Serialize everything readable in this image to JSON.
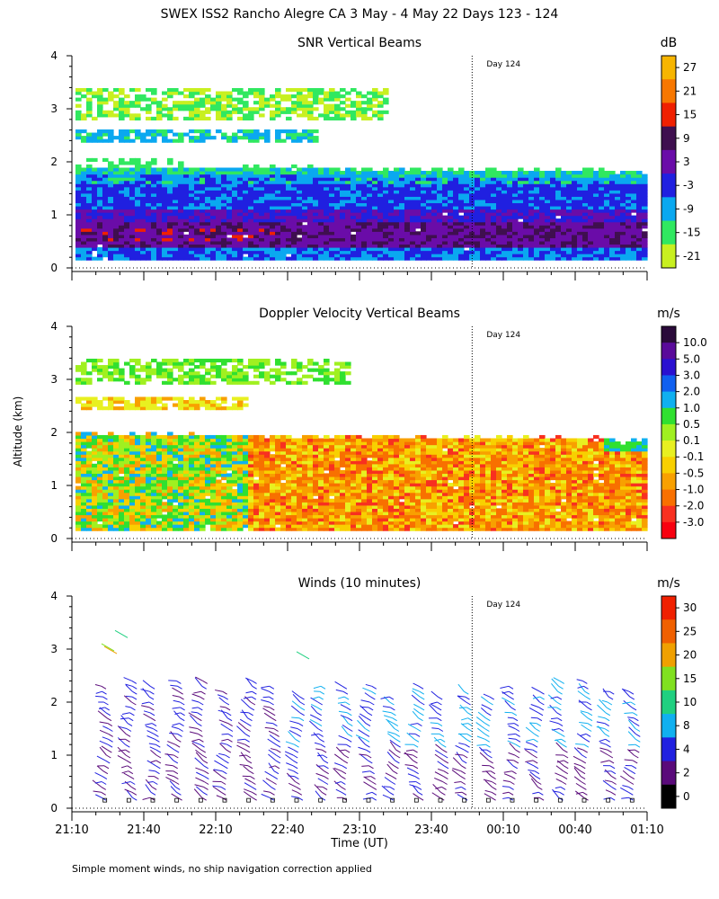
{
  "figure": {
    "title": "SWEX ISS2 Rancho Alegre CA    3 May -   4 May 22 Days 123 - 124",
    "ylabel": "Altitude (km)",
    "xlabel": "Time (UT)",
    "footnote": "Simple moment winds, no ship navigation correction applied",
    "day_marker_label": "Day 124"
  },
  "chart_data": [
    {
      "type": "heatmap",
      "title": "SNR Vertical Beams",
      "colorbar_unit": "dB",
      "colorbar_ticks": [
        "27",
        "21",
        "15",
        "9",
        "3",
        "-3",
        "-9",
        "-15",
        "-21"
      ],
      "colorbar_colors": [
        "#f7b500",
        "#f77700",
        "#f02000",
        "#3f0f4f",
        "#6a0ca8",
        "#2020e0",
        "#0aa8f0",
        "#30e860",
        "#c8f020"
      ],
      "x_ticks": [
        "21:10",
        "21:40",
        "22:10",
        "22:40",
        "23:10",
        "23:40",
        "00:10",
        "00:40",
        "01:10"
      ],
      "y_ticks": [
        "0",
        "1",
        "2",
        "3",
        "4"
      ],
      "ylim": [
        0,
        4
      ],
      "day_marker_time": "23:57",
      "layers": [
        {
          "alt_from": 0.15,
          "alt_to": 0.6,
          "value_db": 3
        },
        {
          "alt_from": 0.4,
          "alt_to": 0.85,
          "value_db": 9
        },
        {
          "alt_from": 0.85,
          "alt_to": 1.1,
          "value_db": 3
        },
        {
          "alt_from": 1.1,
          "alt_to": 1.7,
          "value_db": -3
        },
        {
          "alt_from": 1.7,
          "alt_to": 1.9,
          "value_db": -9
        },
        {
          "alt_from": 2.35,
          "alt_to": 2.6,
          "value_db": -9
        },
        {
          "alt_from": 2.8,
          "alt_to": 3.15,
          "value_db": -15
        },
        {
          "alt_from": 3.15,
          "alt_to": 3.35,
          "value_db": -21
        }
      ]
    },
    {
      "type": "heatmap",
      "title": "Doppler Velocity Vertical Beams",
      "colorbar_unit": "m/s",
      "colorbar_ticks": [
        "10.0",
        "5.0",
        "3.0",
        "2.0",
        "1.0",
        "0.5",
        "0.1",
        "-0.1",
        "-0.5",
        "-1.0",
        "-2.0",
        "-3.0"
      ],
      "colorbar_colors": [
        "#2a0a3a",
        "#5a0a9a",
        "#2a10d0",
        "#1060f0",
        "#10b0f0",
        "#30e030",
        "#a0f020",
        "#e8f020",
        "#f8d000",
        "#f8a000",
        "#f87000",
        "#f83020",
        "#f80010"
      ],
      "x_ticks": [
        "21:10",
        "21:40",
        "22:10",
        "22:40",
        "23:10",
        "23:40",
        "00:10",
        "00:40",
        "01:10"
      ],
      "y_ticks": [
        "0",
        "1",
        "2",
        "3",
        "4"
      ],
      "ylim": [
        0,
        4
      ],
      "day_marker_time": "23:57"
    },
    {
      "type": "scatter",
      "title": "Winds (10 minutes)",
      "colorbar_unit": "m/s",
      "colorbar_ticks": [
        "30",
        "25",
        "20",
        "15",
        "10",
        "8",
        "4",
        "2",
        "0"
      ],
      "colorbar_colors": [
        "#f02000",
        "#f06000",
        "#f0a000",
        "#80e020",
        "#20d080",
        "#10b0f0",
        "#2020e0",
        "#5a0a7a",
        "#000000"
      ],
      "x_ticks": [
        "21:10",
        "21:40",
        "22:10",
        "22:40",
        "23:10",
        "23:40",
        "00:10",
        "00:40",
        "01:10"
      ],
      "y_ticks": [
        "0",
        "1",
        "2",
        "3",
        "4"
      ],
      "ylim": [
        0,
        4
      ],
      "day_marker_time": "23:57"
    }
  ]
}
